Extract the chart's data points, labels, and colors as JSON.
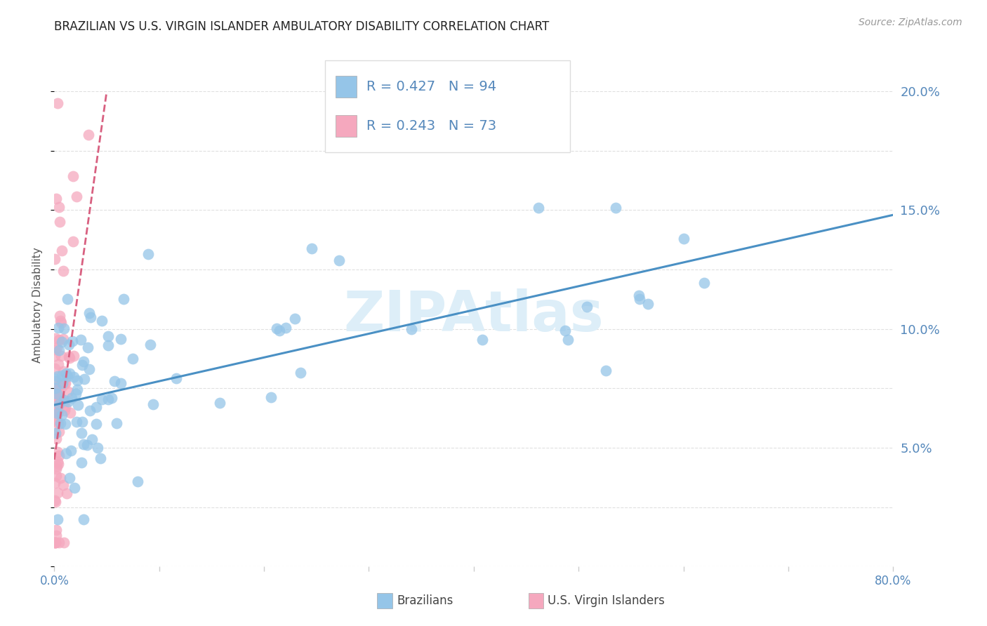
{
  "title": "BRAZILIAN VS U.S. VIRGIN ISLANDER AMBULATORY DISABILITY CORRELATION CHART",
  "source": "Source: ZipAtlas.com",
  "ylabel": "Ambulatory Disability",
  "xlim": [
    0.0,
    0.8
  ],
  "ylim": [
    0.0,
    0.22
  ],
  "yticks_right": [
    0.05,
    0.1,
    0.15,
    0.2
  ],
  "yticklabels_right": [
    "5.0%",
    "10.0%",
    "15.0%",
    "20.0%"
  ],
  "blue_scatter_color": "#95c5e8",
  "pink_scatter_color": "#f5a8be",
  "blue_line_color": "#4a90c4",
  "pink_line_color": "#d86080",
  "blue_R": 0.427,
  "blue_N": 94,
  "pink_R": 0.243,
  "pink_N": 73,
  "watermark": "ZIPAtlas",
  "watermark_color": "#ddeef8",
  "grid_color": "#cccccc",
  "axis_label_color": "#6699cc",
  "tick_label_color": "#5588bb",
  "legend_label_blue": "Brazilians",
  "legend_label_pink": "U.S. Virgin Islanders",
  "blue_line_start_y": 0.068,
  "blue_line_end_y": 0.148,
  "pink_line_start_y": 0.045,
  "pink_line_end_y": 0.2,
  "pink_line_end_x": 0.05
}
